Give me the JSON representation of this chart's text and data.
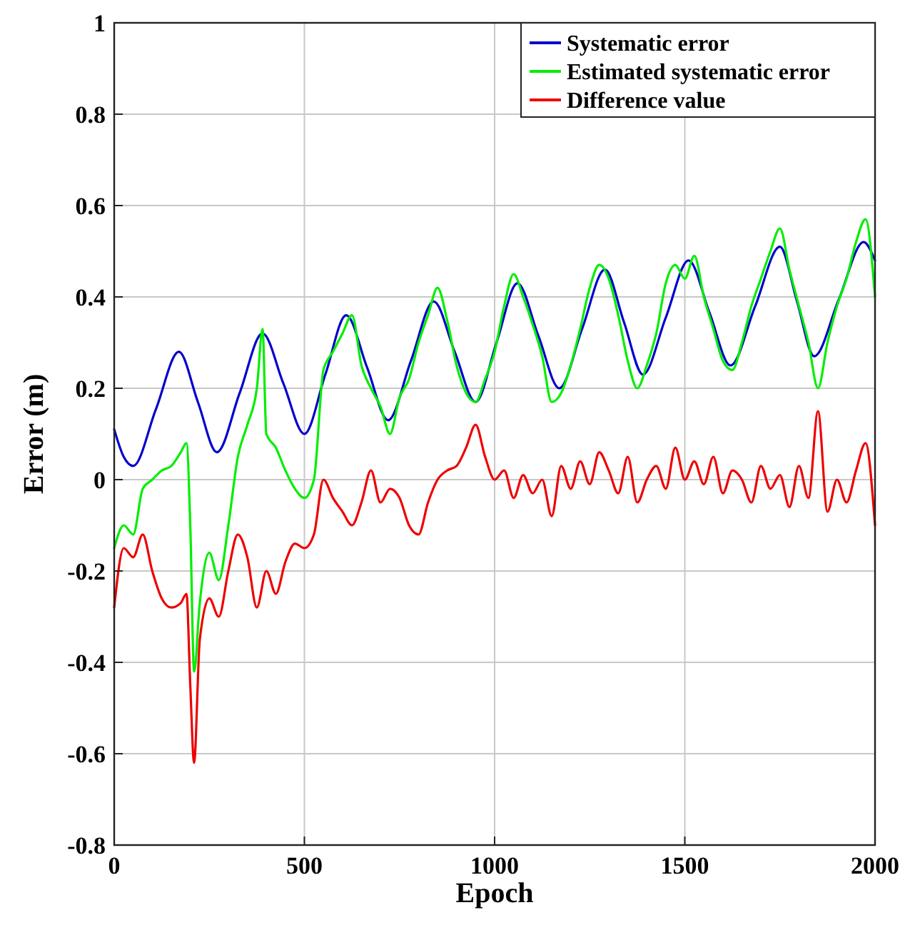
{
  "chart_data": {
    "type": "line",
    "xlabel": "Epoch",
    "ylabel": "Error (m)",
    "xlim": [
      0,
      2000
    ],
    "ylim": [
      -0.8,
      1
    ],
    "xticks": [
      0,
      500,
      1000,
      1500,
      2000
    ],
    "yticks": [
      -0.8,
      -0.6,
      -0.4,
      -0.2,
      0,
      0.2,
      0.4,
      0.6,
      0.8,
      1
    ],
    "grid": true,
    "legend": "top right",
    "line_style": "solid",
    "marker": "none",
    "series": [
      {
        "name": "Systematic error",
        "color": "#0000cc",
        "x": [
          0,
          25,
          50,
          110,
          170,
          220,
          270,
          330,
          390,
          445,
          500,
          555,
          610,
          665,
          720,
          780,
          840,
          895,
          950,
          1005,
          1060,
          1115,
          1170,
          1230,
          1290,
          1340,
          1390,
          1450,
          1510,
          1565,
          1620,
          1685,
          1750,
          1795,
          1840,
          1905,
          1970,
          2000
        ],
        "values": [
          0.11,
          0.05,
          0.03,
          0.155,
          0.28,
          0.17,
          0.06,
          0.19,
          0.32,
          0.21,
          0.1,
          0.23,
          0.36,
          0.245,
          0.13,
          0.26,
          0.39,
          0.28,
          0.17,
          0.3,
          0.43,
          0.315,
          0.2,
          0.33,
          0.46,
          0.345,
          0.23,
          0.355,
          0.48,
          0.365,
          0.25,
          0.38,
          0.51,
          0.39,
          0.27,
          0.395,
          0.52,
          0.48
        ]
      },
      {
        "name": "Estimated systematic error",
        "color": "#00ee00",
        "x": [
          0,
          25,
          50,
          75,
          100,
          125,
          150,
          175,
          190,
          200,
          210,
          225,
          250,
          275,
          300,
          325,
          350,
          375,
          390,
          400,
          425,
          450,
          475,
          500,
          525,
          550,
          575,
          600,
          625,
          650,
          675,
          700,
          725,
          750,
          775,
          800,
          825,
          850,
          875,
          900,
          925,
          950,
          975,
          1000,
          1025,
          1050,
          1075,
          1100,
          1125,
          1150,
          1175,
          1200,
          1225,
          1250,
          1275,
          1300,
          1325,
          1350,
          1375,
          1400,
          1425,
          1450,
          1475,
          1500,
          1525,
          1550,
          1575,
          1600,
          1625,
          1650,
          1675,
          1700,
          1725,
          1750,
          1775,
          1800,
          1825,
          1850,
          1875,
          1900,
          1925,
          1950,
          1975,
          2000
        ],
        "values": [
          -0.15,
          -0.1,
          -0.12,
          -0.02,
          0,
          0.02,
          0.03,
          0.06,
          0.08,
          -0.1,
          -0.42,
          -0.27,
          -0.16,
          -0.22,
          -0.1,
          0.05,
          0.12,
          0.2,
          0.33,
          0.1,
          0.07,
          0.02,
          -0.02,
          -0.04,
          0,
          0.24,
          0.28,
          0.32,
          0.36,
          0.25,
          0.2,
          0.16,
          0.1,
          0.18,
          0.22,
          0.3,
          0.36,
          0.42,
          0.35,
          0.25,
          0.19,
          0.17,
          0.22,
          0.28,
          0.38,
          0.45,
          0.4,
          0.34,
          0.27,
          0.17,
          0.19,
          0.25,
          0.33,
          0.42,
          0.47,
          0.44,
          0.36,
          0.26,
          0.2,
          0.25,
          0.32,
          0.43,
          0.47,
          0.44,
          0.49,
          0.4,
          0.33,
          0.26,
          0.24,
          0.3,
          0.38,
          0.44,
          0.5,
          0.55,
          0.46,
          0.38,
          0.3,
          0.2,
          0.3,
          0.38,
          0.44,
          0.52,
          0.57,
          0.4
        ]
      },
      {
        "name": "Difference value",
        "color": "#ee0000",
        "x": [
          0,
          25,
          50,
          75,
          100,
          125,
          150,
          175,
          190,
          200,
          210,
          225,
          250,
          275,
          300,
          325,
          350,
          375,
          400,
          425,
          450,
          475,
          500,
          525,
          550,
          575,
          600,
          625,
          650,
          675,
          700,
          725,
          750,
          775,
          800,
          825,
          850,
          875,
          900,
          925,
          950,
          975,
          1000,
          1025,
          1050,
          1075,
          1100,
          1125,
          1150,
          1175,
          1200,
          1225,
          1250,
          1275,
          1300,
          1325,
          1350,
          1375,
          1400,
          1425,
          1450,
          1475,
          1500,
          1525,
          1550,
          1575,
          1600,
          1625,
          1650,
          1675,
          1700,
          1725,
          1750,
          1775,
          1800,
          1825,
          1850,
          1875,
          1900,
          1925,
          1950,
          1975,
          2000
        ],
        "values": [
          -0.28,
          -0.15,
          -0.17,
          -0.12,
          -0.2,
          -0.26,
          -0.28,
          -0.27,
          -0.25,
          -0.45,
          -0.62,
          -0.35,
          -0.26,
          -0.3,
          -0.2,
          -0.12,
          -0.17,
          -0.28,
          -0.2,
          -0.25,
          -0.18,
          -0.14,
          -0.15,
          -0.12,
          0,
          -0.04,
          -0.07,
          -0.1,
          -0.05,
          0.02,
          -0.05,
          -0.02,
          -0.04,
          -0.1,
          -0.12,
          -0.05,
          0,
          0.02,
          0.03,
          0.07,
          0.12,
          0.05,
          0,
          0.02,
          -0.04,
          0.01,
          -0.03,
          0,
          -0.08,
          0.03,
          -0.02,
          0.04,
          -0.01,
          0.06,
          0.02,
          -0.03,
          0.05,
          -0.05,
          0,
          0.03,
          -0.02,
          0.07,
          0,
          0.04,
          -0.01,
          0.05,
          -0.03,
          0.02,
          0,
          -0.05,
          0.03,
          -0.02,
          0.01,
          -0.06,
          0.03,
          -0.04,
          0.15,
          -0.07,
          0,
          -0.05,
          0.02,
          0.08,
          -0.1
        ]
      }
    ]
  }
}
